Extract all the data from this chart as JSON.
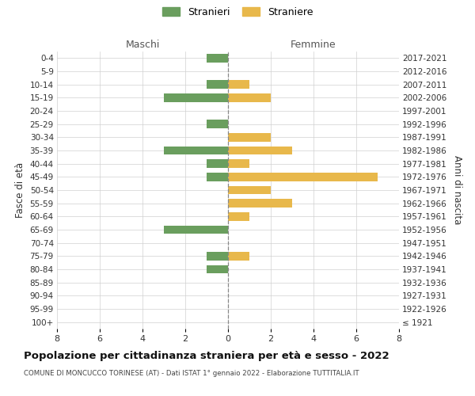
{
  "age_groups": [
    "100+",
    "95-99",
    "90-94",
    "85-89",
    "80-84",
    "75-79",
    "70-74",
    "65-69",
    "60-64",
    "55-59",
    "50-54",
    "45-49",
    "40-44",
    "35-39",
    "30-34",
    "25-29",
    "20-24",
    "15-19",
    "10-14",
    "5-9",
    "0-4"
  ],
  "birth_years": [
    "≤ 1921",
    "1922-1926",
    "1927-1931",
    "1932-1936",
    "1937-1941",
    "1942-1946",
    "1947-1951",
    "1952-1956",
    "1957-1961",
    "1962-1966",
    "1967-1971",
    "1972-1976",
    "1977-1981",
    "1982-1986",
    "1987-1991",
    "1992-1996",
    "1997-2001",
    "2002-2006",
    "2007-2011",
    "2012-2016",
    "2017-2021"
  ],
  "maschi": [
    0,
    0,
    0,
    0,
    1,
    1,
    0,
    3,
    0,
    0,
    0,
    1,
    1,
    3,
    0,
    1,
    0,
    3,
    1,
    0,
    1
  ],
  "femmine": [
    0,
    0,
    0,
    0,
    0,
    1,
    0,
    0,
    1,
    3,
    2,
    7,
    1,
    3,
    2,
    0,
    0,
    2,
    1,
    0,
    0
  ],
  "color_maschi": "#6a9e5e",
  "color_femmine": "#e8b84b",
  "title": "Popolazione per cittadinanza straniera per età e sesso - 2022",
  "subtitle": "COMUNE DI MONCUCCO TORINESE (AT) - Dati ISTAT 1° gennaio 2022 - Elaborazione TUTTITALIA.IT",
  "xlabel_left": "Maschi",
  "xlabel_right": "Femmine",
  "ylabel_left": "Fasce di età",
  "ylabel_right": "Anni di nascita",
  "legend_maschi": "Stranieri",
  "legend_femmine": "Straniere",
  "xlim": 8,
  "background_color": "#ffffff",
  "grid_color": "#d0d0d0"
}
